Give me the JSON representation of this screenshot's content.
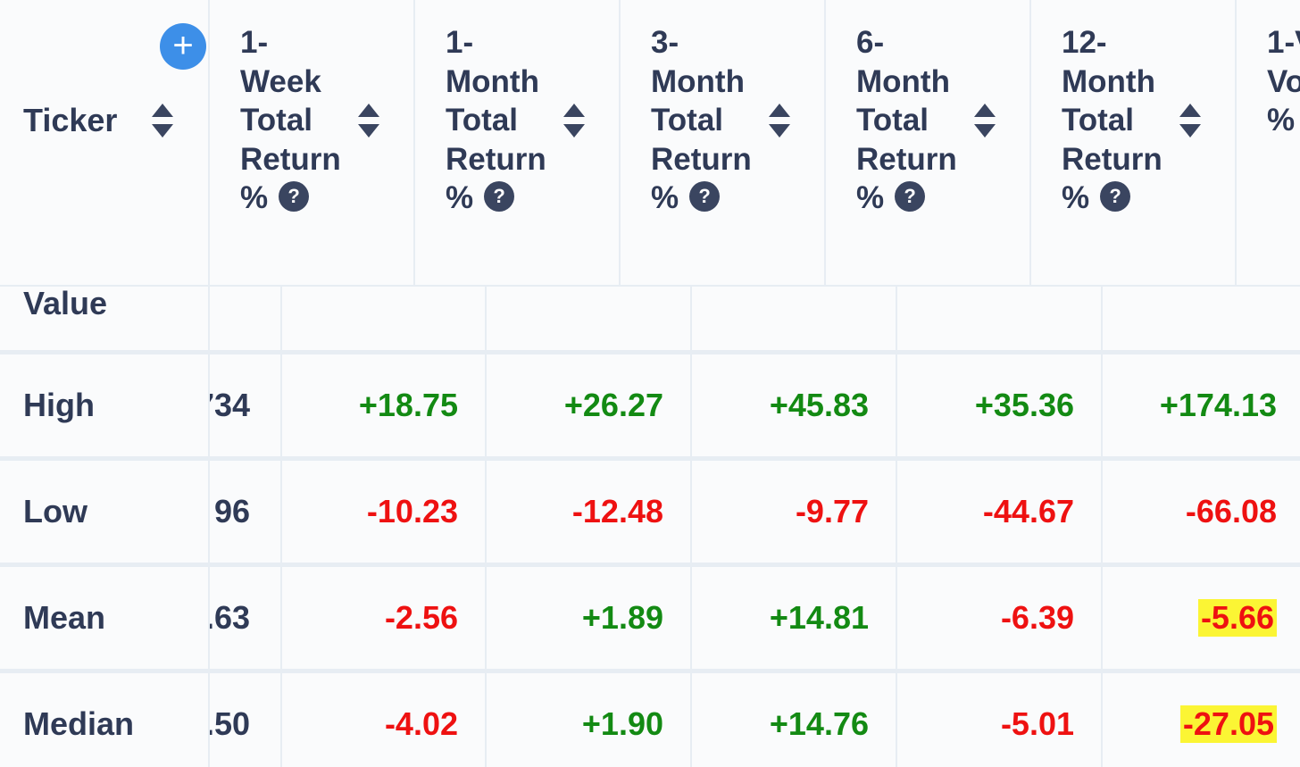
{
  "header": {
    "ticker_label": "Ticker",
    "add_button_symbol": "+",
    "help_symbol": "?",
    "columns": [
      {
        "lines": [
          "1-",
          "Week",
          "Total",
          "Return",
          "%"
        ]
      },
      {
        "lines": [
          "1-",
          "Month",
          "Total",
          "Return",
          "%"
        ]
      },
      {
        "lines": [
          "3-",
          "Month",
          "Total",
          "Return",
          "%"
        ]
      },
      {
        "lines": [
          "6-",
          "Month",
          "Total",
          "Return",
          "%"
        ]
      },
      {
        "lines": [
          "12-",
          "Month",
          "Total",
          "Return",
          "%"
        ]
      },
      {
        "lines": [
          "1-V",
          "Vo",
          "%"
        ]
      }
    ]
  },
  "rows": [
    {
      "label": "Value",
      "partial": "",
      "values": [
        "",
        "",
        "",
        "",
        ""
      ]
    },
    {
      "label": "High",
      "partial": "734",
      "values": [
        "+18.75",
        "+26.27",
        "+45.83",
        "+35.36",
        "+174.13"
      ]
    },
    {
      "label": "Low",
      "partial": "96",
      "values": [
        "-10.23",
        "-12.48",
        "-9.77",
        "-44.67",
        "-66.08"
      ]
    },
    {
      "label": "Mean",
      "partial": ".63",
      "values": [
        "-2.56",
        "+1.89",
        "+14.81",
        "-6.39",
        "-5.66"
      ]
    },
    {
      "label": "Median",
      "partial": ".50",
      "values": [
        "-4.02",
        "+1.90",
        "+14.76",
        "-5.01",
        "-27.05"
      ]
    }
  ],
  "colors": {
    "positive": "#138a13",
    "negative": "#ee1111",
    "highlight": "#fbf534",
    "add_button": "#3d8fe8"
  }
}
